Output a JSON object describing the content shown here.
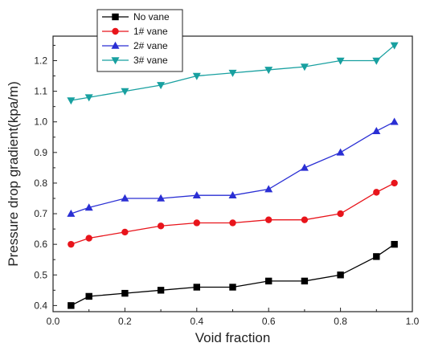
{
  "chart_data": {
    "type": "line",
    "title": "",
    "xlabel": "Void fraction",
    "ylabel": "Pressure drop gradient(kpa/m)",
    "xlim": [
      0.0,
      1.0
    ],
    "ylim": [
      0.38,
      1.28
    ],
    "xticks": [
      "0.0",
      "0.2",
      "0.4",
      "0.6",
      "0.8",
      "1.0"
    ],
    "yticks": [
      "0.4",
      "0.5",
      "0.6",
      "0.7",
      "0.8",
      "0.9",
      "1.0",
      "1.1",
      "1.2"
    ],
    "grid": false,
    "legend_position": "top-left",
    "x": [
      0.05,
      0.1,
      0.2,
      0.3,
      0.4,
      0.5,
      0.6,
      0.7,
      0.8,
      0.9,
      0.95
    ],
    "series": [
      {
        "name": "No vane",
        "color": "#000000",
        "marker": "square",
        "values": [
          0.4,
          0.43,
          0.44,
          0.45,
          0.46,
          0.46,
          0.48,
          0.48,
          0.5,
          0.56,
          0.6
        ]
      },
      {
        "name": "1# vane",
        "color": "#e8141b",
        "marker": "circle",
        "values": [
          0.6,
          0.62,
          0.64,
          0.66,
          0.67,
          0.67,
          0.68,
          0.68,
          0.7,
          0.77,
          0.8
        ]
      },
      {
        "name": "2# vane",
        "color": "#2a2fd4",
        "marker": "triangle-up",
        "values": [
          0.7,
          0.72,
          0.75,
          0.75,
          0.76,
          0.76,
          0.78,
          0.85,
          0.9,
          0.97,
          1.0
        ]
      },
      {
        "name": "3# vane",
        "color": "#18a0a0",
        "marker": "triangle-down",
        "values": [
          1.07,
          1.08,
          1.1,
          1.12,
          1.15,
          1.16,
          1.17,
          1.18,
          1.2,
          1.2,
          1.25
        ]
      }
    ]
  }
}
